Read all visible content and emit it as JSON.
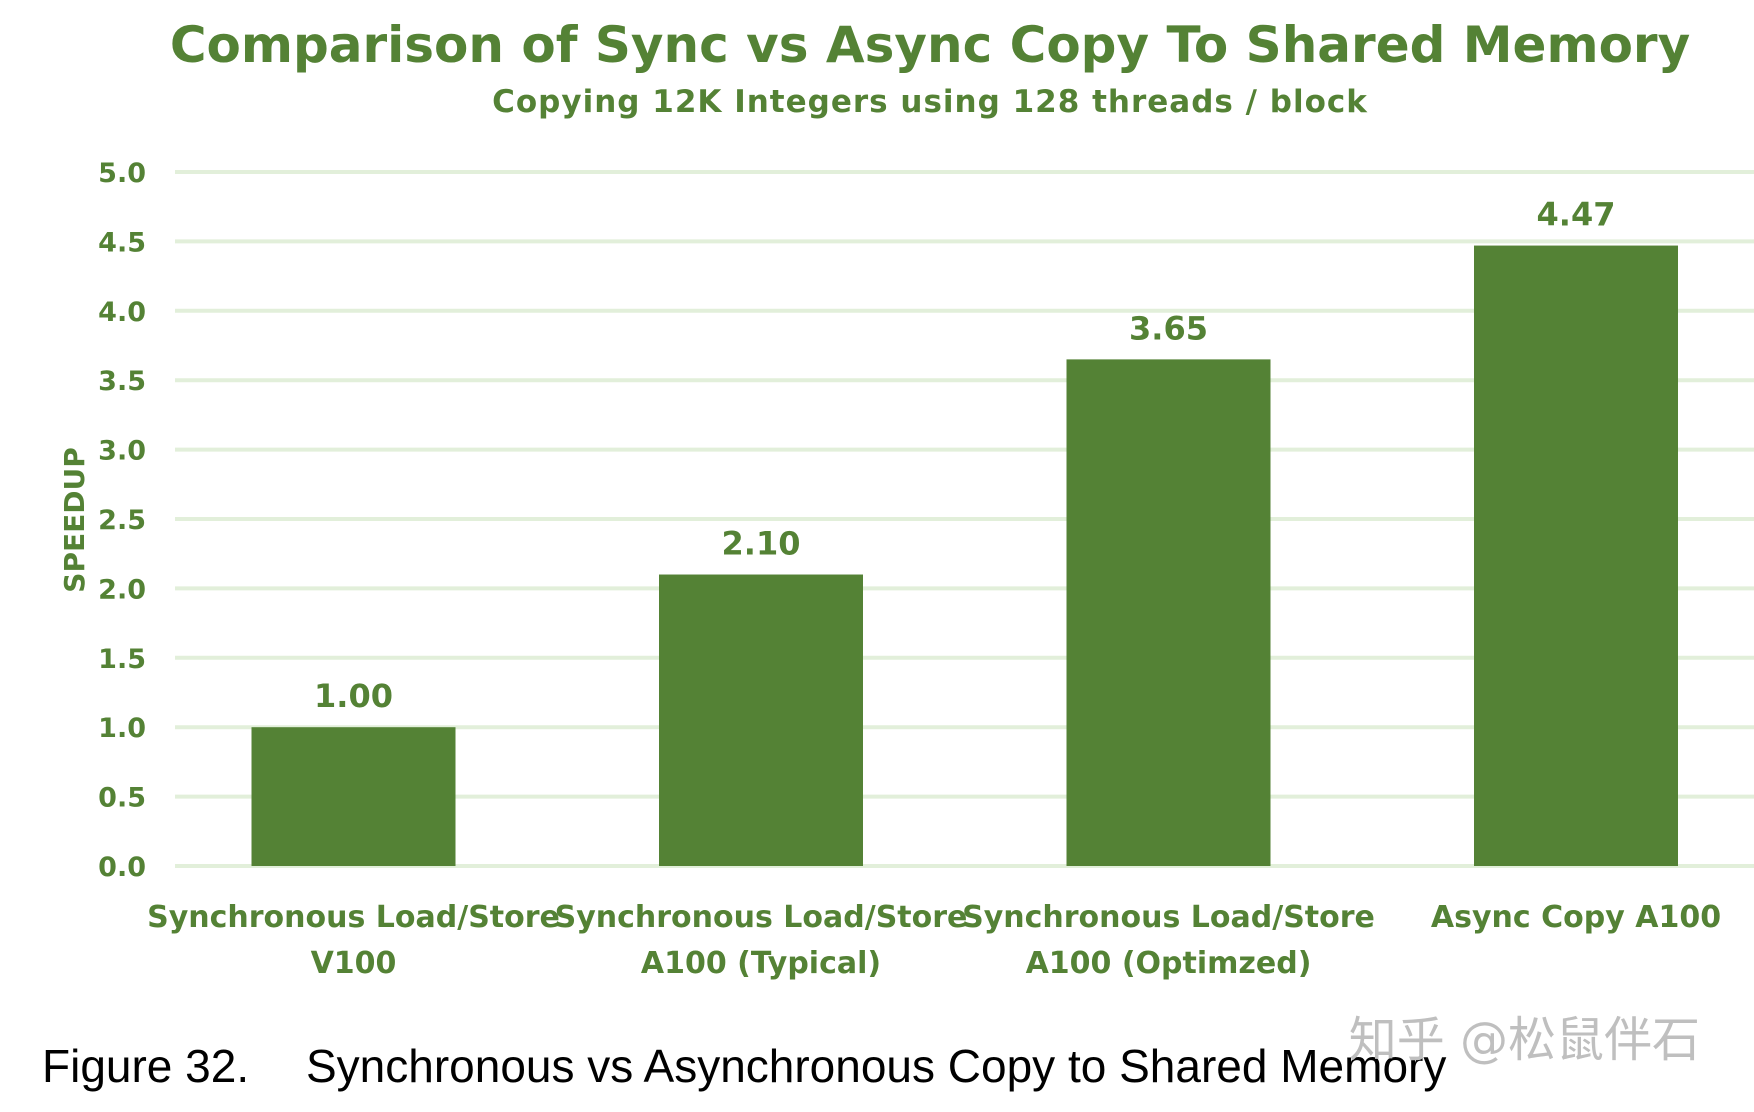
{
  "chart_data": {
    "type": "bar",
    "title": "Comparison of Sync vs Async Copy To Shared Memory",
    "subtitle": "Copying 12K Integers using 128 threads / block",
    "ylabel": "SPEEDUP",
    "xlabel": "",
    "categories": [
      [
        "Synchronous Load/Store",
        "V100"
      ],
      [
        "Synchronous Load/Store",
        "A100 (Typical)"
      ],
      [
        "Synchronous Load/Store",
        "A100 (Optimzed)"
      ],
      [
        "Async Copy A100"
      ]
    ],
    "values": [
      1.0,
      2.1,
      3.65,
      4.47
    ],
    "data_labels": [
      "1.00",
      "2.10",
      "3.65",
      "4.47"
    ],
    "yticks": [
      "0.0",
      "0.5",
      "1.0",
      "1.5",
      "2.0",
      "2.5",
      "3.0",
      "3.5",
      "4.0",
      "4.5",
      "5.0"
    ],
    "ylim": [
      0,
      5
    ],
    "grid": true,
    "legend": "none"
  },
  "caption": {
    "label": "Figure 32.",
    "text": "Synchronous vs Asynchronous Copy to Shared Memory"
  },
  "watermark": "知乎 @松鼠伴石",
  "colors": {
    "bar": "#548235",
    "title": "#548235",
    "text": "#548235",
    "grid": "#E2EFDA",
    "caption": "#000000",
    "watermark": "#BFBFBF"
  }
}
